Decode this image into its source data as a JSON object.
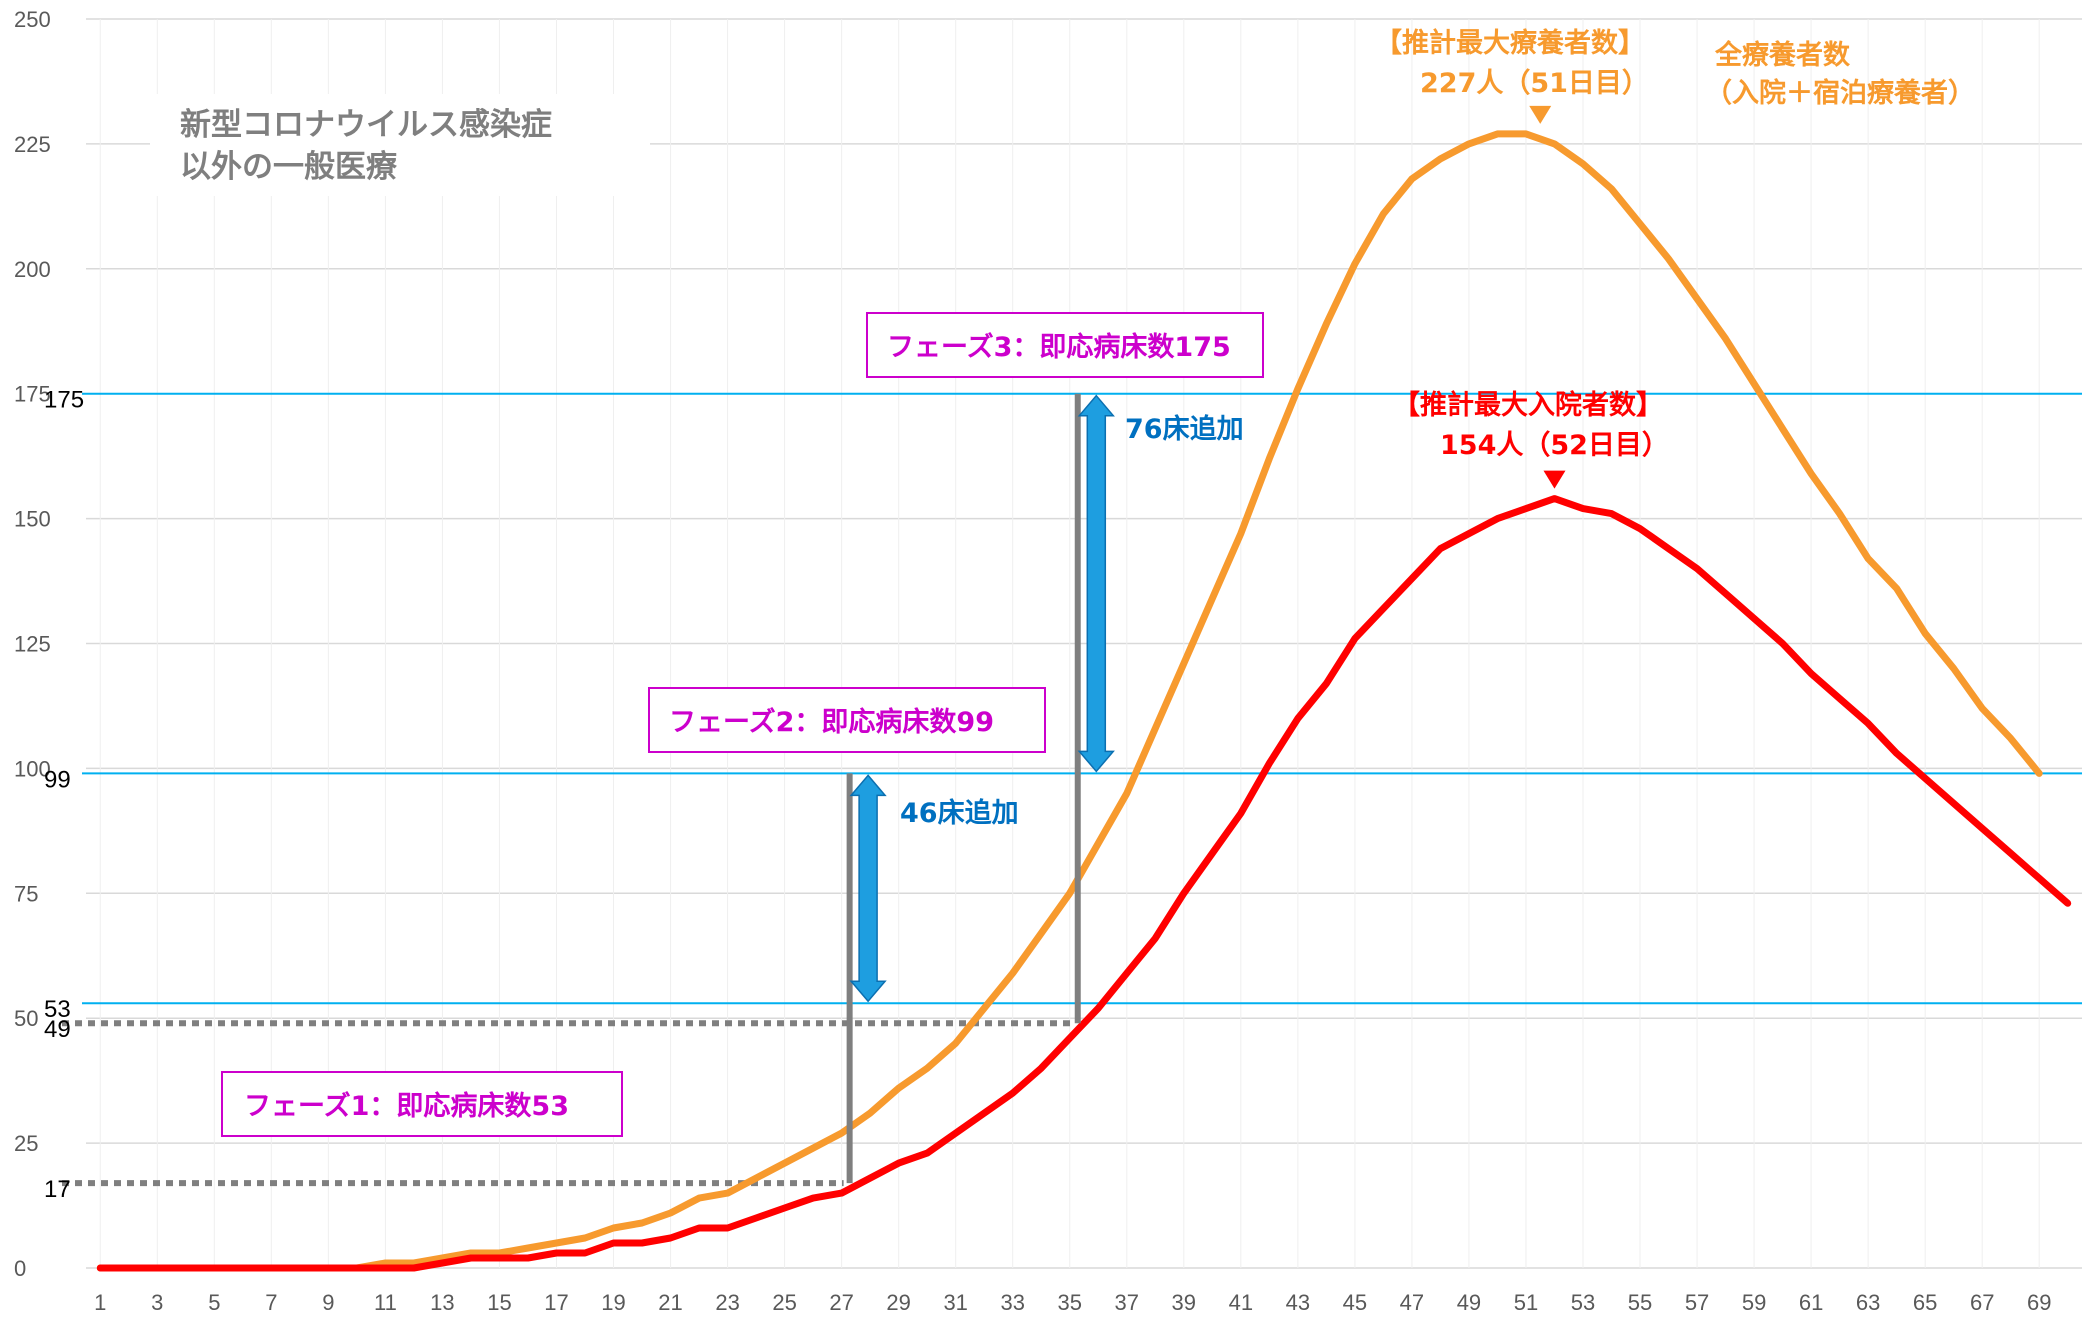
{
  "chart_data": {
    "type": "line",
    "x": [
      1,
      2,
      3,
      4,
      5,
      6,
      7,
      8,
      9,
      10,
      11,
      12,
      13,
      14,
      15,
      16,
      17,
      18,
      19,
      20,
      21,
      22,
      23,
      24,
      25,
      26,
      27,
      28,
      29,
      30,
      31,
      32,
      33,
      34,
      35,
      36,
      37,
      38,
      39,
      40,
      41,
      42,
      43,
      44,
      45,
      46,
      47,
      48,
      49,
      50,
      51,
      52,
      53,
      54,
      55,
      56,
      57,
      58,
      59,
      60,
      61,
      62,
      63,
      64,
      65,
      66,
      67,
      68,
      69,
      70
    ],
    "x_tick_labels": [
      "1",
      "3",
      "5",
      "7",
      "9",
      "11",
      "13",
      "15",
      "17",
      "19",
      "21",
      "23",
      "25",
      "27",
      "29",
      "31",
      "33",
      "35",
      "37",
      "39",
      "41",
      "43",
      "45",
      "47",
      "49",
      "51",
      "53",
      "55",
      "57",
      "59",
      "61",
      "63",
      "65",
      "67",
      "69"
    ],
    "ylim": [
      0,
      250
    ],
    "y_tick_labels": [
      "0",
      "25",
      "50",
      "75",
      "100",
      "125",
      "150",
      "175",
      "200",
      "225",
      "250"
    ],
    "grid": true,
    "series": [
      {
        "name": "全療養者数（入院＋宿泊療養者）",
        "color": "#f79a2e",
        "values": [
          0,
          0,
          0,
          0,
          0,
          0,
          0,
          0,
          0,
          0,
          1,
          1,
          2,
          3,
          3,
          4,
          5,
          6,
          8,
          9,
          11,
          14,
          15,
          18,
          21,
          24,
          27,
          31,
          36,
          40,
          45,
          52,
          59,
          67,
          75,
          85,
          95,
          108,
          121,
          134,
          147,
          162,
          176,
          189,
          201,
          211,
          218,
          222,
          225,
          227,
          227,
          225,
          221,
          216,
          209,
          202,
          194,
          186,
          177,
          168,
          159,
          151,
          142,
          136,
          127,
          120,
          112,
          106,
          99,
          null
        ]
      },
      {
        "name": "入院者数",
        "color": "#ff0000",
        "values": [
          0,
          0,
          0,
          0,
          0,
          0,
          0,
          0,
          0,
          0,
          0,
          0,
          1,
          2,
          2,
          2,
          3,
          3,
          5,
          5,
          6,
          8,
          8,
          10,
          12,
          14,
          15,
          18,
          21,
          23,
          27,
          31,
          35,
          40,
          46,
          52,
          59,
          66,
          75,
          83,
          91,
          101,
          110,
          117,
          126,
          132,
          138,
          144,
          147,
          150,
          152,
          154,
          152,
          151,
          148,
          144,
          140,
          135,
          130,
          125,
          119,
          114,
          109,
          103,
          98,
          93,
          88,
          83,
          78,
          73
        ]
      }
    ],
    "y_tick_extra": [
      "175",
      "99",
      "53",
      "49",
      "17"
    ],
    "reference_lines": [
      {
        "value": 175,
        "color": "#00b0f0"
      },
      {
        "value": 99,
        "color": "#00b0f0"
      },
      {
        "value": 53,
        "color": "#00b0f0"
      },
      {
        "value": 49,
        "color": "#7f7f7f",
        "style": "dotted",
        "x_end": 35
      },
      {
        "value": 17,
        "color": "#7f7f7f",
        "style": "dotted",
        "x_end": 27
      }
    ],
    "vertical_markers": [
      {
        "x": 27,
        "y_from": 17,
        "y_to": 99
      },
      {
        "x": 35,
        "y_from": 49,
        "y_to": 175
      }
    ],
    "arrows": [
      {
        "x": 28,
        "y_from": 53,
        "y_to": 99,
        "label": "46床追加"
      },
      {
        "x": 36,
        "y_from": 99,
        "y_to": 175,
        "label": "76床追加"
      }
    ],
    "annotations": {
      "title_line1": "新型コロナウイルス感染症",
      "title_line2": "以外の一般医療",
      "orange_legend_line1": "全療養者数",
      "orange_legend_line2": "（入院＋宿泊療養者）",
      "orange_peak_line1": "【推計最大療養者数】",
      "orange_peak_line2": "227人（51日目）",
      "red_peak_line1": "【推計最大入院者数】",
      "red_peak_line2": "154人（52日目）",
      "phase1": "フェーズ1：即応病床数53",
      "phase2": "フェーズ2：即応病床数99",
      "phase3": "フェーズ3：即応病床数175"
    },
    "peaks": [
      {
        "series": 0,
        "x": 51.5,
        "y": 227
      },
      {
        "series": 1,
        "x": 52,
        "y": 154
      }
    ]
  },
  "colors": {
    "axis_text": "#595959",
    "grid": "#d9d9d9",
    "phase_border": "#cc00cc",
    "arrow_fill": "#1e9ee0"
  }
}
